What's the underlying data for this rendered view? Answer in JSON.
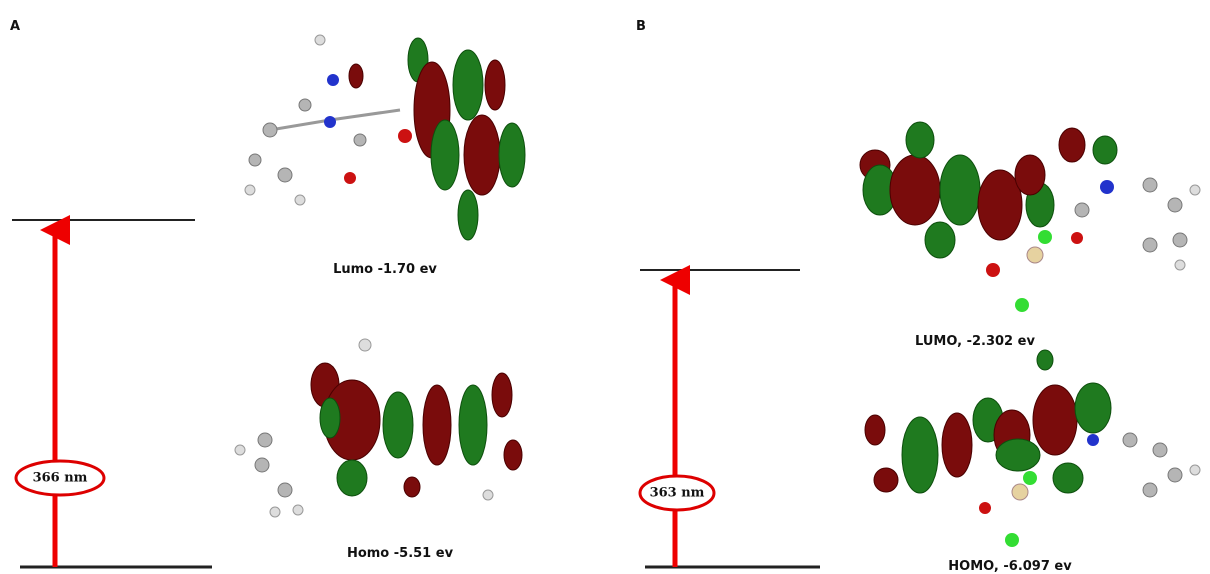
{
  "panels": [
    {
      "label": "A",
      "transition": "366 nm",
      "lumo": "Lumo -1.70 ev",
      "homo": "Homo -5.51 ev"
    },
    {
      "label": "B",
      "transition": "363 nm",
      "lumo": "LUMO, -2.302 ev",
      "homo": "HOMO, -6.097 ev"
    }
  ]
}
